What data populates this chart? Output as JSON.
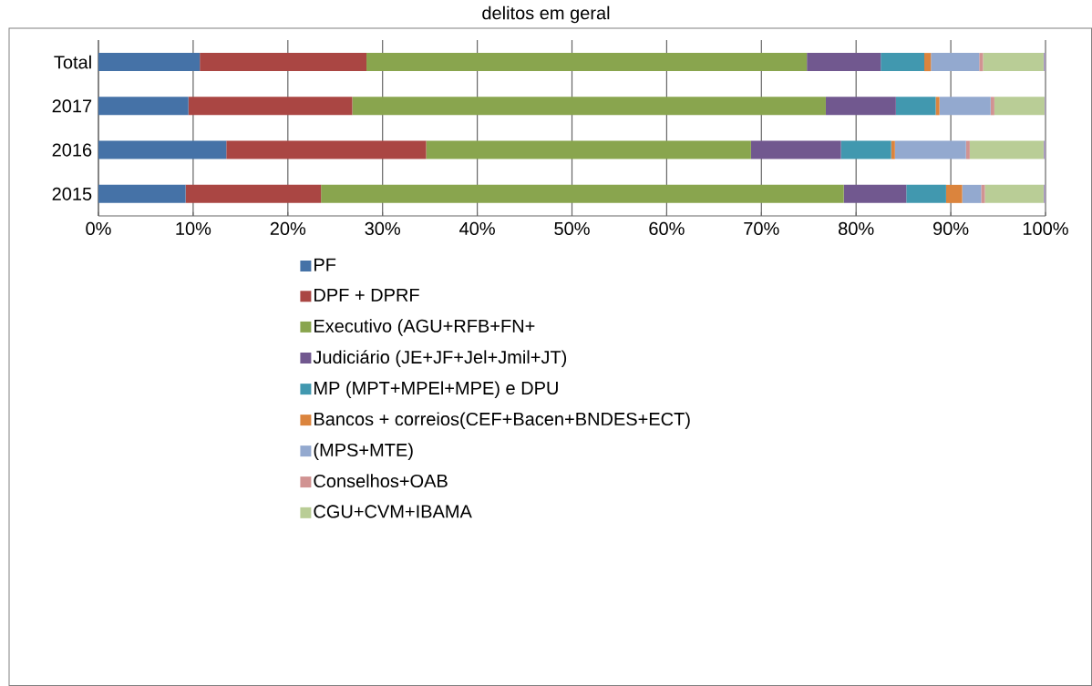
{
  "chart_data": {
    "type": "bar",
    "orientation": "horizontal",
    "stacked": true,
    "title": "delitos em geral",
    "categories": [
      "Total",
      "2017",
      "2016",
      "2015"
    ],
    "series": [
      {
        "name": "PF",
        "color": "#4572a7",
        "values": [
          10.7,
          9.5,
          13.5,
          9.2
        ]
      },
      {
        "name": "DPF + DPRF",
        "color": "#aa4643",
        "values": [
          17.6,
          17.3,
          21.1,
          14.3
        ]
      },
      {
        "name": "Executivo (AGU+RFB+FN+",
        "color": "#89a54e",
        "values": [
          46.5,
          50.0,
          34.3,
          55.2
        ]
      },
      {
        "name": "Judiciário (JE+JF+Jel+Jmil+JT)",
        "color": "#71588f",
        "values": [
          7.8,
          7.4,
          9.5,
          6.6
        ]
      },
      {
        "name": "MP (MPT+MPEl+MPE) e DPU",
        "color": "#4198af",
        "values": [
          4.6,
          4.2,
          5.3,
          4.2
        ]
      },
      {
        "name": "Bancos + correios(CEF+Bacen+BNDES+ECT)",
        "color": "#db843d",
        "values": [
          0.7,
          0.4,
          0.4,
          1.7
        ]
      },
      {
        "name": "(MPS+MTE)",
        "color": "#93a9cf",
        "values": [
          5.1,
          5.4,
          7.5,
          2.0
        ]
      },
      {
        "name": "Conselhos+OAB",
        "color": "#d19392",
        "values": [
          0.4,
          0.4,
          0.4,
          0.4
        ]
      },
      {
        "name": "CGU+CVM+IBAMA",
        "color": "#b9cd96",
        "values": [
          6.4,
          5.3,
          7.8,
          6.2
        ]
      },
      {
        "color": "#a99bbd",
        "values": [
          0.2,
          0.1,
          0.2,
          0.2
        ]
      }
    ],
    "xlim": [
      0,
      100
    ],
    "xticks": [
      {
        "value": 0,
        "label": "0%"
      },
      {
        "value": 10,
        "label": "10%"
      },
      {
        "value": 20,
        "label": "20%"
      },
      {
        "value": 30,
        "label": "30%"
      },
      {
        "value": 40,
        "label": "40%"
      },
      {
        "value": 50,
        "label": "50%"
      },
      {
        "value": 60,
        "label": "60%"
      },
      {
        "value": 70,
        "label": "70%"
      },
      {
        "value": 80,
        "label": "80%"
      },
      {
        "value": 90,
        "label": "90%"
      },
      {
        "value": 100,
        "label": "100%"
      }
    ],
    "grid": "x",
    "legend": "bottom"
  }
}
